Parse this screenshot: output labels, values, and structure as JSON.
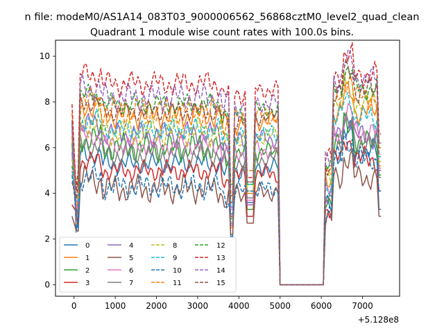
{
  "figure": {
    "suptitle": "n file: modeM0/AS1A14_083T03_9000006562_56868cztM0_level2_quad_clean",
    "offset_label": "+5.128e8"
  },
  "chart_data": {
    "type": "line",
    "title": "Quadrant 1 module wise count rates with 100.0s bins.",
    "xlabel": "",
    "ylabel": "",
    "x_offset": 512800000,
    "xlim": [
      -450,
      7900
    ],
    "ylim": [
      -0.5,
      10.7
    ],
    "xticks": [
      0,
      1000,
      2000,
      3000,
      4000,
      5000,
      6000,
      7000
    ],
    "yticks": [
      0,
      2,
      4,
      6,
      8,
      10
    ],
    "grid": false,
    "legend": {
      "placement": "lower-left",
      "columns": 4
    },
    "x": [
      -50,
      50,
      100,
      150,
      200,
      250,
      300,
      350,
      400,
      450,
      500,
      550,
      600,
      650,
      700,
      750,
      800,
      850,
      900,
      950,
      1000,
      1050,
      1100,
      1150,
      1200,
      1250,
      1300,
      1350,
      1400,
      1450,
      1500,
      1550,
      1600,
      1650,
      1700,
      1750,
      1800,
      1850,
      1900,
      1950,
      2000,
      2050,
      2100,
      2150,
      2200,
      2250,
      2300,
      2350,
      2400,
      2450,
      2500,
      2550,
      2600,
      2650,
      2700,
      2750,
      2800,
      2850,
      2900,
      2950,
      3000,
      3050,
      3100,
      3150,
      3200,
      3250,
      3300,
      3350,
      3400,
      3450,
      3500,
      3550,
      3600,
      3650,
      3700,
      3750,
      3800,
      3850,
      3900,
      3950,
      4000,
      4050,
      4100,
      4150,
      4200,
      4250,
      4300,
      4350,
      4400,
      4450,
      4500,
      4550,
      4600,
      4650,
      4700,
      4750,
      4800,
      4850,
      4900,
      4950,
      5000,
      5050,
      5100,
      5150,
      5200,
      5250,
      5300,
      5350,
      5400,
      5450,
      5500,
      5550,
      5600,
      5650,
      5700,
      5750,
      5800,
      5850,
      5900,
      5950,
      6000,
      6050,
      6100,
      6150,
      6200,
      6250,
      6300,
      6350,
      6400,
      6450,
      6500,
      6550,
      6600,
      6650,
      6700,
      6750,
      6800,
      6850,
      6900,
      6950,
      7000,
      7050,
      7100,
      7150,
      7200,
      7250,
      7300,
      7350,
      7400,
      7450
    ],
    "series": [
      {
        "name": "0",
        "color": "#1f77b4",
        "dash": "solid"
      },
      {
        "name": "1",
        "color": "#ff7f0e",
        "dash": "solid"
      },
      {
        "name": "2",
        "color": "#2ca02c",
        "dash": "solid"
      },
      {
        "name": "3",
        "color": "#d62728",
        "dash": "solid"
      },
      {
        "name": "4",
        "color": "#9467bd",
        "dash": "solid"
      },
      {
        "name": "5",
        "color": "#8c564b",
        "dash": "solid"
      },
      {
        "name": "6",
        "color": "#e377c2",
        "dash": "solid"
      },
      {
        "name": "7",
        "color": "#7f7f7f",
        "dash": "solid"
      },
      {
        "name": "8",
        "color": "#bcbd22",
        "dash": "dashed"
      },
      {
        "name": "9",
        "color": "#17becf",
        "dash": "dashed"
      },
      {
        "name": "10",
        "color": "#1f77b4",
        "dash": "dashed"
      },
      {
        "name": "11",
        "color": "#ff7f0e",
        "dash": "dashed"
      },
      {
        "name": "12",
        "color": "#2ca02c",
        "dash": "dashed"
      },
      {
        "name": "13",
        "color": "#d62728",
        "dash": "dashed"
      },
      {
        "name": "14",
        "color": "#9467bd",
        "dash": "dashed"
      },
      {
        "name": "15",
        "color": "#8c564b",
        "dash": "dashed"
      }
    ]
  }
}
